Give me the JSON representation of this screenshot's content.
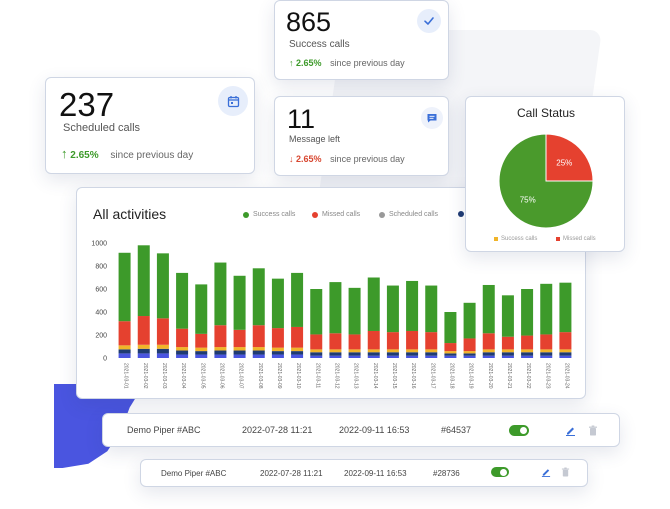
{
  "stats": {
    "success": {
      "value": "865",
      "label": "Success calls",
      "delta": "2.65%",
      "delta_text": "since previous day",
      "trend": "up",
      "icon": "check-icon"
    },
    "scheduled": {
      "value": "237",
      "label": "Scheduled calls",
      "delta": "2.65%",
      "delta_text": "since previous day",
      "trend": "up",
      "icon": "calendar-icon"
    },
    "message": {
      "value": "11",
      "label": "Message left",
      "delta": "2.65%",
      "delta_text": "since previous day",
      "trend": "down",
      "icon": "message-icon"
    }
  },
  "activities": {
    "title": "All activities",
    "legend": [
      {
        "label": "Success calls",
        "color": "#3d9a2a"
      },
      {
        "label": "Missed calls",
        "color": "#e5412f"
      },
      {
        "label": "Scheduled calls",
        "color": "#999999"
      },
      {
        "label": "",
        "color": "#1f3b73"
      }
    ]
  },
  "call_status": {
    "title": "Call Status",
    "slices": [
      {
        "label": "Success calls",
        "value": 75,
        "text": "75%",
        "color": "#4a9a2c"
      },
      {
        "label": "Missed calls",
        "value": 25,
        "text": "25%",
        "color": "#e5412f"
      }
    ]
  },
  "rows": [
    {
      "name": "Demo Piper #ABC",
      "created": "2022-07-28 11:21",
      "updated": "2022-09-11 16:53",
      "id": "#64537",
      "enabled": true
    },
    {
      "name": "Demo Piper #ABC",
      "created": "2022-07-28 11:21",
      "updated": "2022-09-11 16:53",
      "id": "#28736",
      "enabled": true
    }
  ],
  "chart_data": {
    "type": "bar",
    "stacked": true,
    "title": "All activities",
    "ylim": [
      0,
      1000
    ],
    "yticks": [
      0,
      200,
      400,
      600,
      800,
      1000
    ],
    "categories": [
      "2021-03-01",
      "2021-03-02",
      "2021-03-03",
      "2021-03-04",
      "2021-03-05",
      "2021-03-06",
      "2021-03-07",
      "2021-03-08",
      "2021-03-09",
      "2021-03-10",
      "2021-03-11",
      "2021-03-12",
      "2021-03-13",
      "2021-03-14",
      "2021-03-15",
      "2021-03-16",
      "2021-03-17",
      "2021-03-18",
      "2021-03-19",
      "2021-03-20",
      "2021-03-21",
      "2021-03-22",
      "2021-03-23",
      "2021-03-24"
    ],
    "series": [
      {
        "name": "",
        "color": "#4a55e0",
        "values": [
          40,
          40,
          40,
          30,
          30,
          30,
          30,
          30,
          30,
          30,
          20,
          20,
          20,
          20,
          20,
          20,
          20,
          20,
          20,
          20,
          20,
          20,
          20,
          20
        ]
      },
      {
        "name": "",
        "color": "#1f3b73",
        "values": [
          35,
          40,
          40,
          35,
          30,
          35,
          35,
          35,
          30,
          30,
          30,
          30,
          30,
          30,
          30,
          30,
          30,
          20,
          20,
          30,
          30,
          30,
          30,
          30
        ]
      },
      {
        "name": "",
        "color": "#f0b429",
        "values": [
          35,
          35,
          35,
          30,
          30,
          30,
          30,
          30,
          30,
          30,
          25,
          25,
          25,
          25,
          25,
          25,
          25,
          20,
          20,
          25,
          25,
          25,
          25,
          25
        ]
      },
      {
        "name": "Missed calls",
        "color": "#e5412f",
        "values": [
          210,
          250,
          230,
          160,
          120,
          190,
          150,
          190,
          170,
          180,
          130,
          140,
          130,
          160,
          150,
          160,
          150,
          70,
          110,
          140,
          110,
          120,
          130,
          150
        ]
      },
      {
        "name": "Success calls",
        "color": "#3d9a2a",
        "values": [
          595,
          615,
          565,
          485,
          430,
          545,
          470,
          495,
          430,
          470,
          395,
          445,
          405,
          465,
          405,
          435,
          405,
          270,
          310,
          420,
          360,
          405,
          440,
          430
        ]
      }
    ]
  }
}
